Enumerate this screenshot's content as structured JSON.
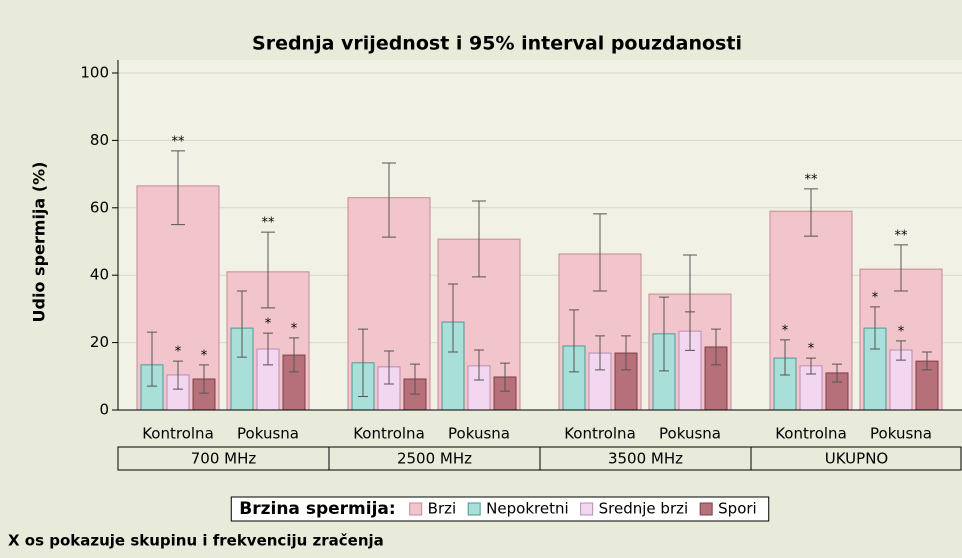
{
  "chart_data": {
    "type": "bar",
    "title": "Srednja vrijednost i 95% interval pouzdanosti",
    "ylabel": "Udio spermija (%)",
    "xlabel": "X os pokazuje skupinu i frekvenciju zračenja",
    "categories": [
      "Kontrolna",
      "Pokusna",
      "Kontrolna",
      "Pokusna",
      "Kontrolna",
      "Pokusna",
      "Kontrolna",
      "Pokusna"
    ],
    "groups": [
      "700 MHz",
      "2500 MHz",
      "3500 MHz",
      "UKUPNO"
    ],
    "legend_title": "Brzina spermija:",
    "ylim": [
      0,
      100
    ],
    "yticks": [
      0,
      20,
      40,
      60,
      80,
      100
    ],
    "grid": true,
    "series": [
      {
        "name": "Brzi",
        "color": "#f2c4cc",
        "values": [
          66.5,
          41,
          63,
          50.7,
          46.3,
          34.4,
          59,
          41.8
        ],
        "lower": [
          55,
          30.3,
          51.3,
          39.5,
          35.3,
          23,
          51.6,
          35.3
        ],
        "upper": [
          76.9,
          52.8,
          73.3,
          62,
          58.2,
          46,
          65.6,
          49
        ],
        "annotations": [
          "**",
          "**",
          null,
          null,
          null,
          null,
          "**",
          "**"
        ]
      },
      {
        "name": "Nepokretni",
        "color": "#a8dfd9",
        "values": [
          13.4,
          24.3,
          14,
          26.1,
          19,
          22.6,
          15.4,
          24.3
        ],
        "lower": [
          7.1,
          15.7,
          4,
          17.2,
          11.3,
          11.6,
          10.4,
          18.1
        ],
        "upper": [
          23.1,
          35.3,
          24,
          37.4,
          29.7,
          33.5,
          20.8,
          30.6
        ],
        "annotations": [
          null,
          null,
          null,
          null,
          null,
          null,
          "*",
          "*"
        ]
      },
      {
        "name": "Srednje brzi",
        "color": "#f3d6f0",
        "values": [
          10.4,
          18.1,
          12.8,
          13.1,
          16.9,
          23.4,
          13.1,
          17.8
        ],
        "lower": [
          6.2,
          13.4,
          7.7,
          8.9,
          11.9,
          17.7,
          10.7,
          14.8
        ],
        "upper": [
          14.5,
          22.8,
          17.5,
          17.8,
          22,
          29.1,
          15.4,
          20.5
        ],
        "annotations": [
          "*",
          "*",
          null,
          null,
          null,
          null,
          "*",
          "*"
        ]
      },
      {
        "name": "Spori",
        "color": "#b5707a",
        "values": [
          9.2,
          16.3,
          9.2,
          9.8,
          16.9,
          18.7,
          11,
          14.5
        ],
        "lower": [
          5,
          11.3,
          4.7,
          5.6,
          11.9,
          13.4,
          8.3,
          11.9
        ],
        "upper": [
          13.4,
          21.4,
          13.6,
          13.9,
          22,
          24,
          13.6,
          17.2
        ],
        "annotations": [
          "*",
          "*",
          null,
          null,
          null,
          null,
          null,
          null
        ]
      }
    ]
  }
}
